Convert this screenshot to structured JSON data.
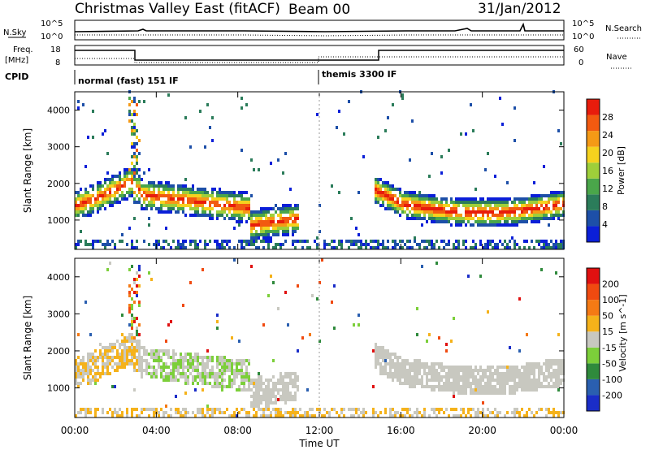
{
  "header": {
    "title": "Christmas Valley East (fitACF)",
    "beam": "Beam 00",
    "date": "31/Jan/2012"
  },
  "panels": {
    "noise_left_label": "N.Sky",
    "noise_right_label": "N.Search",
    "noise_left_ticks": [
      "10^5",
      "10^0"
    ],
    "noise_right_ticks": [
      "10^5",
      "10^0"
    ],
    "freq_left_label_1": "Freq.",
    "freq_left_label_2": "[MHz]",
    "freq_left_ticks": [
      "18",
      "8"
    ],
    "nave_label": "Nave",
    "nave_ticks": [
      "60",
      "0"
    ],
    "cpid_label": "CPID",
    "cpid_modes": [
      "normal (fast) 151 IF",
      "themis 3300 IF"
    ]
  },
  "chart_data": [
    {
      "type": "heatmap",
      "ylabel": "Slant Range [km]",
      "y_ticks": [
        "4000",
        "3000",
        "2000",
        "1000"
      ],
      "ylim": [
        200,
        4500
      ],
      "colorbar_label": "Power [dB]",
      "colorbar_ticks": [
        "28",
        "24",
        "20",
        "16",
        "12",
        "8",
        "4"
      ],
      "colors": [
        "#0b1fd8",
        "#1d4fa8",
        "#2b7c5a",
        "#4aa64a",
        "#9ecf3a",
        "#f5d21e",
        "#f59a16",
        "#f25a10",
        "#e81c0c"
      ]
    },
    {
      "type": "heatmap",
      "ylabel": "Slant Range [km]",
      "y_ticks": [
        "4000",
        "3000",
        "2000",
        "1000"
      ],
      "ylim": [
        200,
        4500
      ],
      "colorbar_label": "Velocity [m s^-1]",
      "colorbar_ticks": [
        "200",
        "100",
        "50",
        "15",
        "-15",
        "-50",
        "-100",
        "-200"
      ],
      "colors": [
        "#1a2dc8",
        "#2a5fb0",
        "#2f8a3c",
        "#7ccf3a",
        "#c8c8c0",
        "#f5b21a",
        "#f57a14",
        "#f04a10",
        "#e01010"
      ]
    }
  ],
  "x_axis": {
    "xlabel": "Time UT",
    "ticks": [
      "00:00",
      "04:00",
      "08:00",
      "12:00",
      "16:00",
      "20:00",
      "00:00"
    ]
  }
}
